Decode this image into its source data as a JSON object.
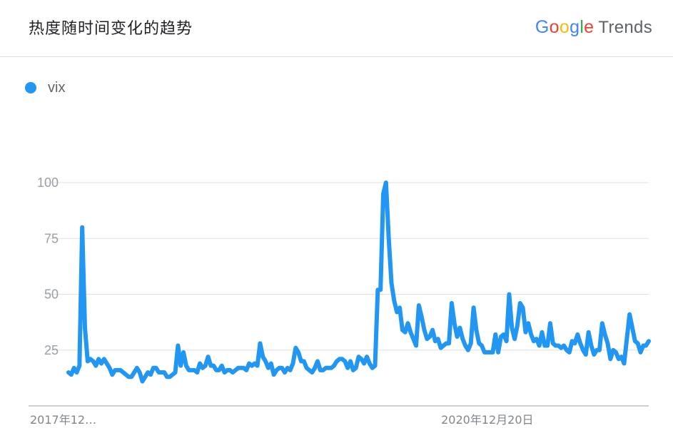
{
  "header": {
    "title": "热度随时间变化的趋势",
    "brand_letters": [
      {
        "ch": "G",
        "color": "#4285F4"
      },
      {
        "ch": "o",
        "color": "#EA4335"
      },
      {
        "ch": "o",
        "color": "#FBBC05"
      },
      {
        "ch": "g",
        "color": "#4285F4"
      },
      {
        "ch": "l",
        "color": "#34A853"
      },
      {
        "ch": "e",
        "color": "#EA4335"
      }
    ],
    "brand_suffix": "Trends"
  },
  "legend": {
    "label": "vix",
    "color": "#2196f3"
  },
  "chart_data": {
    "type": "line",
    "ylim": [
      0,
      100
    ],
    "y_ticks": [
      25,
      50,
      75,
      100
    ],
    "x_tick_labels": [
      {
        "label": "2017年12…",
        "index": 0
      },
      {
        "label": "2020年12月20日",
        "index": 157
      }
    ],
    "grid": true,
    "legend_position": "top-left",
    "series": [
      {
        "name": "vix",
        "color": "#2196f3",
        "values": [
          15,
          14,
          17,
          15,
          18,
          80,
          35,
          20,
          21,
          20,
          18,
          21,
          19,
          21,
          19,
          17,
          14,
          16,
          16,
          16,
          15,
          14,
          13,
          13,
          15,
          17,
          15,
          11,
          13,
          15,
          14,
          17,
          17,
          15,
          15,
          15,
          13,
          13,
          14,
          15,
          27,
          18,
          24,
          18,
          16,
          16,
          16,
          15,
          19,
          17,
          18,
          22,
          18,
          18,
          16,
          16,
          18,
          15,
          16,
          16,
          15,
          16,
          17,
          17,
          17,
          16,
          19,
          18,
          19,
          18,
          28,
          22,
          20,
          17,
          19,
          14,
          16,
          17,
          17,
          15,
          17,
          16,
          19,
          26,
          24,
          20,
          20,
          17,
          16,
          15,
          17,
          20,
          16,
          16,
          17,
          17,
          17,
          18,
          20,
          21,
          21,
          20,
          17,
          20,
          16,
          17,
          22,
          21,
          19,
          22,
          19,
          17,
          18,
          52,
          52,
          95,
          100,
          75,
          55,
          47,
          42,
          44,
          34,
          33,
          37,
          33,
          30,
          27,
          45,
          40,
          34,
          30,
          31,
          34,
          29,
          30,
          26,
          27,
          28,
          28,
          46,
          37,
          31,
          35,
          30,
          27,
          25,
          28,
          44,
          34,
          28,
          27,
          24,
          24,
          24,
          24,
          32,
          24,
          31,
          32,
          29,
          50,
          35,
          30,
          36,
          46,
          44,
          33,
          37,
          32,
          29,
          30,
          27,
          33,
          27,
          27,
          37,
          28,
          27,
          27,
          26,
          27,
          25,
          24,
          29,
          28,
          32,
          28,
          25,
          23,
          33,
          27,
          23,
          25,
          25,
          37,
          32,
          28,
          21,
          25,
          24,
          21,
          22,
          19,
          30,
          41,
          35,
          29,
          28,
          24,
          27,
          27,
          29
        ]
      }
    ]
  }
}
